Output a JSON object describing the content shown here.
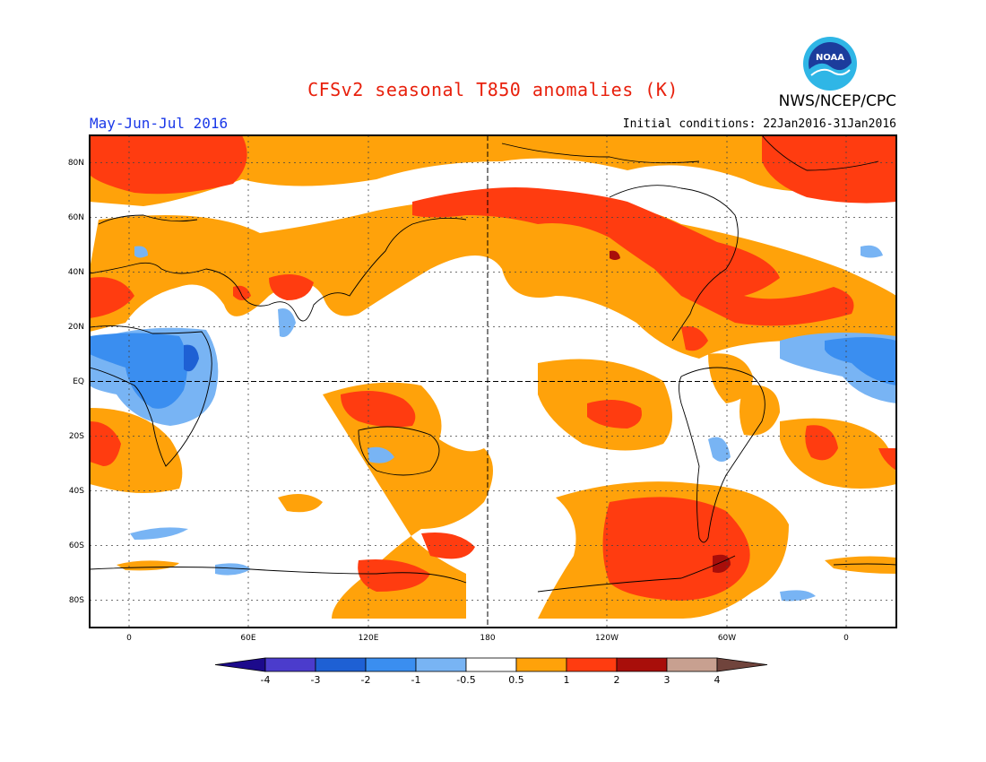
{
  "title": "CFSv2 seasonal T850 anomalies (K)",
  "agency": "NWS/NCEP/CPC",
  "logo_text": "NOAA",
  "period": "May-Jun-Jul 2016",
  "initial_conditions": "Initial conditions: 22Jan2016-31Jan2016",
  "lat_labels": [
    "80N",
    "60N",
    "40N",
    "20N",
    "EQ",
    "20S",
    "40S",
    "60S",
    "80S"
  ],
  "lon_labels": [
    "0",
    "60E",
    "120E",
    "180",
    "120W",
    "60W",
    "0"
  ],
  "colorbar": {
    "bins": [
      {
        "color": "#1c0a8c"
      },
      {
        "color": "#4b3ccc"
      },
      {
        "color": "#1e60d4"
      },
      {
        "color": "#3a8ef0"
      },
      {
        "color": "#78b4f4"
      },
      {
        "color": "#ffffff"
      },
      {
        "color": "#ffa20a"
      },
      {
        "color": "#ff3c10"
      },
      {
        "color": "#a80e0a"
      },
      {
        "color": "#c8a090"
      },
      {
        "color": "#70443c"
      }
    ],
    "tick_labels": [
      "-4",
      "-3",
      "-2",
      "-1",
      "-0.5",
      "0.5",
      "1",
      "2",
      "3",
      "4"
    ]
  },
  "colors": {
    "anomaly_0_5_to_1": "#ffa20a",
    "anomaly_1_to_2": "#ff3c10",
    "anomaly_2_to_3": "#a80e0a",
    "anomaly_neg_0_5_to_1": "#78b4f4",
    "anomaly_neg_1_to_2": "#3a8ef0",
    "anomaly_neg_2_to_3": "#1e60d4"
  }
}
